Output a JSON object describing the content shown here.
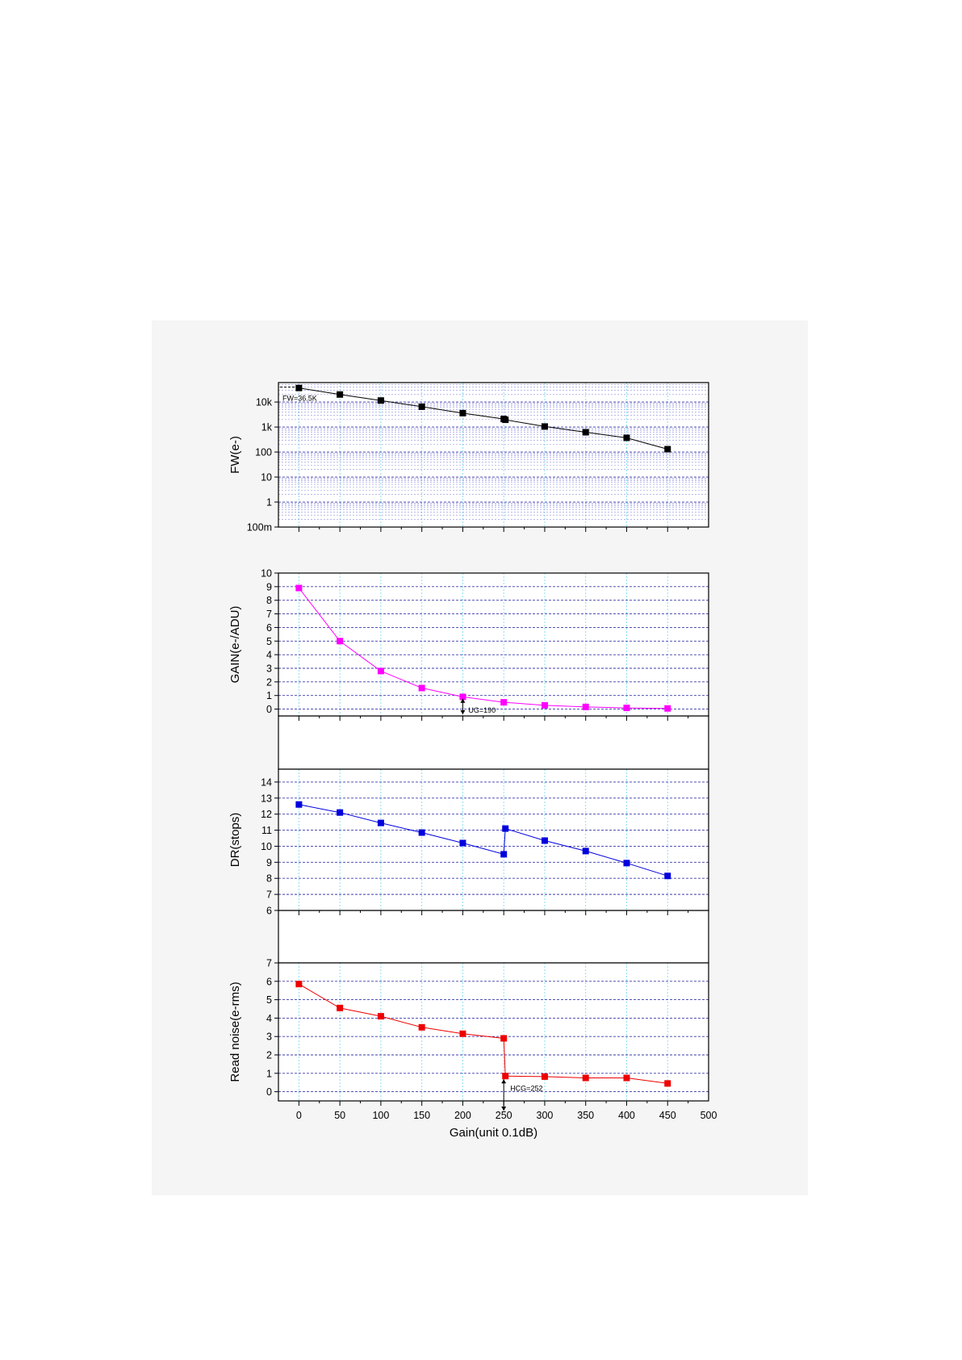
{
  "chart_data": [
    {
      "type": "line",
      "panel": "fw",
      "yscale": "log",
      "ylabel": "FW(e-)",
      "ylim": [
        0.1,
        60000
      ],
      "ytick_values": [
        0.1,
        1,
        10,
        100,
        1000,
        10000
      ],
      "ytick_labels": [
        "100m",
        "1",
        "10",
        "100",
        "1k",
        "10k"
      ],
      "xlim": [
        -25,
        500
      ],
      "x": [
        0,
        50,
        100,
        150,
        200,
        250,
        252,
        300,
        350,
        400,
        450
      ],
      "y": [
        36500,
        20000,
        11500,
        6500,
        3600,
        2100,
        1950,
        1050,
        620,
        370,
        130
      ],
      "color": "#000000",
      "annotations": [
        {
          "text": "FW=36.5K",
          "x": 0,
          "y": 36500
        }
      ]
    },
    {
      "type": "line",
      "panel": "gain",
      "ylabel": "GAIN(e-/ADU)",
      "ylim": [
        -0.5,
        10
      ],
      "ytick_values": [
        0,
        1,
        2,
        3,
        4,
        5,
        6,
        7,
        8,
        9,
        10
      ],
      "xlim": [
        -25,
        500
      ],
      "x": [
        0,
        50,
        100,
        150,
        200,
        250,
        300,
        350,
        400,
        450
      ],
      "y": [
        8.9,
        5.0,
        2.8,
        1.55,
        0.9,
        0.5,
        0.28,
        0.16,
        0.09,
        0.05
      ],
      "color": "#ff00ff",
      "annotations": [
        {
          "text": "UG=190",
          "x": 190,
          "y": 1
        }
      ]
    },
    {
      "type": "line",
      "panel": "dr",
      "ylabel": "DR(stops)",
      "ylim": [
        6,
        14.8
      ],
      "ytick_values": [
        6,
        7,
        8,
        9,
        10,
        11,
        12,
        13,
        14
      ],
      "xlim": [
        -25,
        500
      ],
      "x": [
        0,
        50,
        100,
        150,
        200,
        250,
        252,
        300,
        350,
        400,
        450
      ],
      "y": [
        12.6,
        12.1,
        11.45,
        10.85,
        10.2,
        9.5,
        11.1,
        10.35,
        9.7,
        8.95,
        8.15
      ],
      "color": "#0000dd"
    },
    {
      "type": "line",
      "panel": "noise",
      "ylabel": "Read noise(e-rms)",
      "xlabel": "Gain(unit 0.1dB)",
      "ylim": [
        -0.5,
        7
      ],
      "ytick_values": [
        0,
        1,
        2,
        3,
        4,
        5,
        6,
        7
      ],
      "xlim": [
        -25,
        500
      ],
      "xtick_values": [
        0,
        50,
        100,
        150,
        200,
        250,
        300,
        350,
        400,
        450,
        500
      ],
      "x": [
        0,
        50,
        100,
        150,
        200,
        250,
        252,
        300,
        350,
        400,
        450
      ],
      "y": [
        5.85,
        4.55,
        4.1,
        3.5,
        3.15,
        2.9,
        0.85,
        0.82,
        0.75,
        0.75,
        0.45
      ],
      "color": "#ee0000",
      "annotations": [
        {
          "text": "HCG=252",
          "x": 252,
          "y": 0.85
        }
      ]
    }
  ],
  "colors": {
    "vertical_grid": "#7fdcee",
    "horizontal_grid": "#3a3aa8",
    "minor_grid": "#6a6ad0",
    "panel_background": "#f5f5f5",
    "plot_background": "#ffffff"
  }
}
